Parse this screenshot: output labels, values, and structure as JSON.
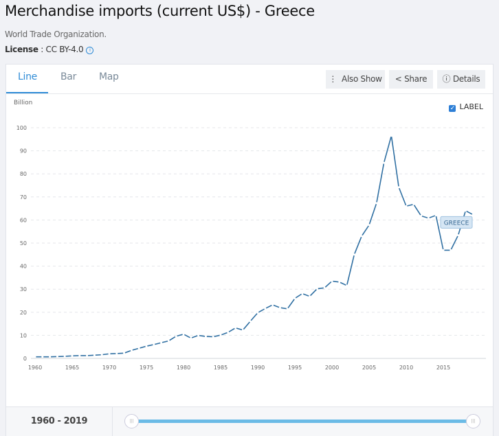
{
  "header": {
    "title": "Merchandise imports (current US$) - Greece",
    "source": "World Trade Organization.",
    "license_label": "License",
    "license_value": " : CC BY-4.0"
  },
  "tabs": [
    {
      "label": "Line",
      "active": true
    },
    {
      "label": "Bar"
    },
    {
      "label": "Map"
    }
  ],
  "toolbar": {
    "also_show": "Also Show",
    "share": "Share",
    "details": "Details"
  },
  "label_toggle": {
    "label": "LABEL",
    "checked": true
  },
  "footer": {
    "range": "1960 - 2019",
    "slider_start": 1960,
    "slider_end": 2019
  },
  "colors": {
    "line": "#2f6fa2",
    "accent": "#2e8bd6",
    "slider": "#6bbbe6"
  },
  "chart_data": {
    "type": "line",
    "ylabel": "Billion",
    "ylim": [
      0,
      100
    ],
    "yticks": [
      0,
      10,
      20,
      30,
      40,
      50,
      60,
      70,
      80,
      90,
      100
    ],
    "xticks": [
      1960,
      1965,
      1970,
      1975,
      1980,
      1985,
      1990,
      1995,
      2000,
      2005,
      2010,
      2015
    ],
    "grid": true,
    "series": [
      {
        "name": "GREECE",
        "x": [
          1960,
          1961,
          1962,
          1963,
          1964,
          1965,
          1966,
          1967,
          1968,
          1969,
          1970,
          1971,
          1972,
          1973,
          1974,
          1975,
          1976,
          1977,
          1978,
          1979,
          1980,
          1981,
          1982,
          1983,
          1984,
          1985,
          1986,
          1987,
          1988,
          1989,
          1990,
          1991,
          1992,
          1993,
          1994,
          1995,
          1996,
          1997,
          1998,
          1999,
          2000,
          2001,
          2002,
          2003,
          2004,
          2005,
          2006,
          2007,
          2008,
          2009,
          2010,
          2011,
          2012,
          2013,
          2014,
          2015,
          2016,
          2017,
          2018,
          2019
        ],
        "values": [
          0.7,
          0.7,
          0.7,
          0.8,
          0.9,
          1.1,
          1.2,
          1.2,
          1.4,
          1.6,
          2.0,
          2.1,
          2.3,
          3.5,
          4.4,
          5.3,
          6.0,
          6.8,
          7.6,
          9.6,
          10.5,
          8.8,
          10.0,
          9.5,
          9.4,
          10.1,
          11.3,
          13.2,
          12.3,
          16.1,
          19.8,
          21.6,
          23.2,
          22.0,
          21.5,
          26.0,
          28.1,
          26.9,
          30.2,
          30.6,
          33.5,
          33.1,
          31.6,
          45.0,
          53.0,
          57.8,
          67.3,
          84.8,
          96.5,
          74.2,
          66.0,
          66.8,
          61.8,
          60.8,
          62.0,
          46.9,
          46.9,
          53.4,
          64.0,
          62.3
        ]
      }
    ]
  }
}
